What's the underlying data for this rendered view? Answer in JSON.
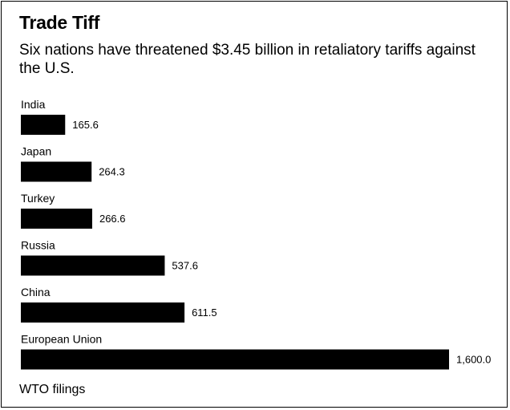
{
  "title": "Trade Tiff",
  "subtitle": "Six nations have threatened $3.45 billion in retaliatory tariffs against the U.S.",
  "source": "WTO filings",
  "colors": {
    "bar": "#000000",
    "background": "#ffffff",
    "text": "#000000"
  },
  "chart_data": {
    "type": "bar",
    "orientation": "horizontal",
    "categories": [
      "India",
      "Japan",
      "Turkey",
      "Russia",
      "China",
      "European Union"
    ],
    "values": [
      165.6,
      264.3,
      266.6,
      537.6,
      611.5,
      1600.0
    ],
    "value_labels": [
      "165.6",
      "264.3",
      "266.6",
      "537.6",
      "611.5",
      "1,600.0"
    ],
    "title": "Trade Tiff",
    "xlabel": "",
    "ylabel": "",
    "xlim": [
      0,
      1600
    ],
    "grid": false,
    "legend": "none"
  }
}
